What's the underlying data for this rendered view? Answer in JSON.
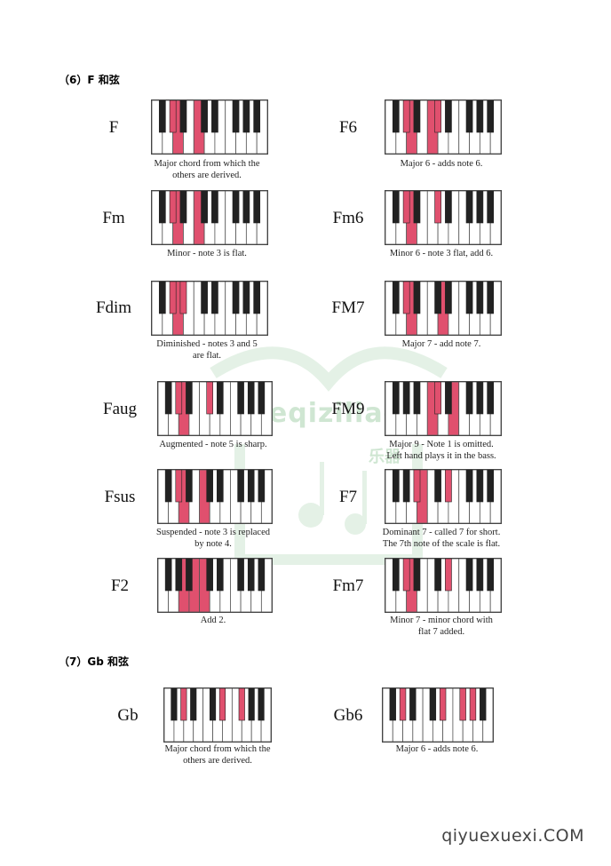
{
  "sections": [
    {
      "title": "（6）F 和弦"
    },
    {
      "title": "（7）Gb 和弦"
    }
  ],
  "highlight_color": "#e0506e",
  "chords": [
    {
      "name": "F",
      "caption": [
        "Major chord from which the",
        "others are derived."
      ]
    },
    {
      "name": "F6",
      "caption": [
        "Major 6 - adds note 6."
      ]
    },
    {
      "name": "Fm",
      "caption": [
        "Minor - note 3 is flat."
      ]
    },
    {
      "name": "Fm6",
      "caption": [
        "Minor 6 - note 3 flat, add 6."
      ]
    },
    {
      "name": "Fdim",
      "caption": [
        "Diminished - notes 3 and 5",
        "are flat."
      ]
    },
    {
      "name": "FM7",
      "caption": [
        "Major 7 - add note 7."
      ]
    },
    {
      "name": "Faug",
      "caption": [
        "Augmented - note 5 is sharp."
      ]
    },
    {
      "name": "FM9",
      "caption": [
        "Major 9 - Note 1 is omitted.",
        "Left hand plays it in the bass."
      ]
    },
    {
      "name": "Fsus",
      "caption": [
        "Suspended - note 3 is replaced",
        "by note 4."
      ]
    },
    {
      "name": "F7",
      "caption": [
        "Dominant 7 - called 7 for short.",
        "The 7th note of the scale is flat."
      ]
    },
    {
      "name": "F2",
      "caption": [
        "Add 2."
      ]
    },
    {
      "name": "Fm7",
      "caption": [
        "Minor 7 - minor chord with",
        "flat 7 added."
      ]
    },
    {
      "name": "Gb",
      "caption": [
        "Major chord from which the",
        "others are derived."
      ]
    },
    {
      "name": "Gb6",
      "caption": [
        "Major 6 - adds note 6."
      ]
    }
  ],
  "watermark": {
    "text": "Yueqiziliao.com",
    "cn": "乐器"
  },
  "footer": {
    "text": "qiyuexuexi.COM"
  }
}
